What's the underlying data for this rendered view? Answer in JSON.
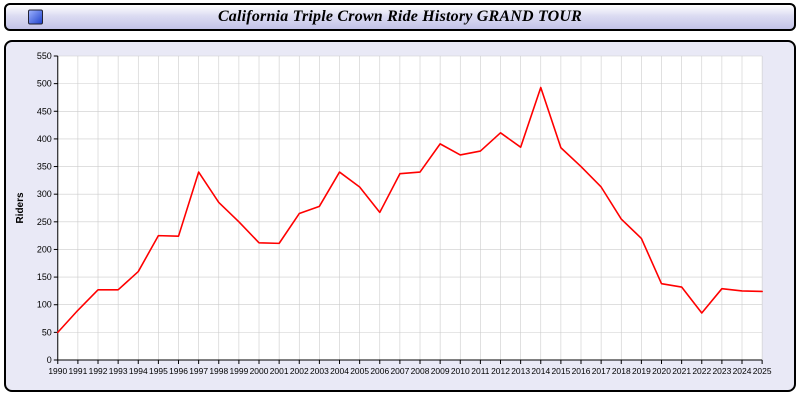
{
  "window": {
    "title": "California Triple Crown Ride History GRAND TOUR"
  },
  "chart_data": {
    "type": "line",
    "title": "California Triple Crown Ride History GRAND TOUR",
    "xlabel": "",
    "ylabel": "Riders",
    "ylim": [
      0,
      550
    ],
    "ytick_step": 50,
    "grid": true,
    "grid_color": "#cccccc",
    "line_color": "#ff0000",
    "background_color": "#ffffff",
    "panel_color": "#e9e9f6",
    "x": [
      1990,
      1991,
      1992,
      1993,
      1994,
      1995,
      1996,
      1997,
      1998,
      1999,
      2000,
      2001,
      2002,
      2003,
      2004,
      2005,
      2006,
      2007,
      2008,
      2009,
      2010,
      2011,
      2012,
      2013,
      2014,
      2015,
      2016,
      2017,
      2018,
      2019,
      2020,
      2021,
      2022,
      2023,
      2024,
      2025
    ],
    "series": [
      {
        "name": "Riders",
        "values": [
          50,
          90,
          127,
          127,
          160,
          225,
          224,
          340,
          285,
          250,
          212,
          211,
          265,
          278,
          340,
          313,
          267,
          337,
          340,
          391,
          371,
          378,
          411,
          385,
          493,
          384,
          350,
          313,
          255,
          220,
          138,
          132,
          85,
          129,
          125,
          124
        ]
      }
    ]
  }
}
